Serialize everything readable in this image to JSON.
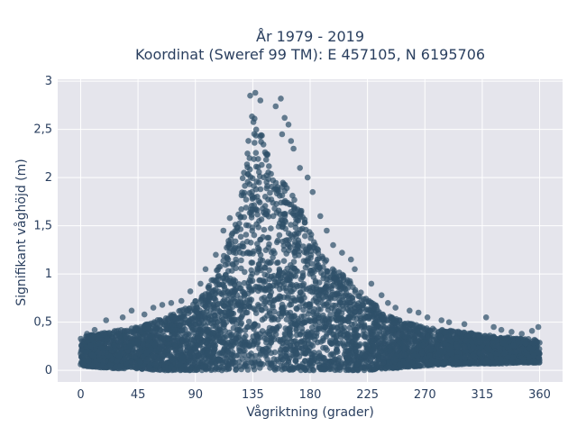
{
  "chart_data": {
    "type": "scatter",
    "title": "År 1979 - 2019",
    "subtitle": "Koordinat (Sweref 99 TM): E 457105, N 6195706",
    "xlabel": "Vågriktning (grader)",
    "ylabel": "Signifikant våghöjd (m)",
    "xlim": [
      -18,
      378
    ],
    "ylim": [
      -0.12,
      3.02
    ],
    "x_ticks": [
      0,
      45,
      90,
      135,
      180,
      225,
      270,
      315,
      360
    ],
    "x_tick_labels": [
      "0",
      "45",
      "90",
      "135",
      "180",
      "225",
      "270",
      "315",
      "360"
    ],
    "y_ticks": [
      0,
      0.5,
      1,
      1.5,
      2,
      2.5,
      3
    ],
    "y_tick_labels": [
      "0",
      "0,5",
      "1",
      "1,5",
      "2",
      "2,5",
      "3"
    ],
    "grid": true,
    "legend": "none",
    "marker_color": "#2f5069",
    "background_color": "#e5e5ec",
    "envelope": {
      "x": [
        0,
        15,
        30,
        45,
        60,
        75,
        90,
        100,
        110,
        120,
        125,
        130,
        135,
        140,
        145,
        150,
        155,
        160,
        170,
        180,
        190,
        200,
        210,
        225,
        240,
        255,
        270,
        285,
        300,
        315,
        330,
        345,
        360
      ],
      "y_max": [
        0.35,
        0.38,
        0.42,
        0.45,
        0.52,
        0.6,
        0.72,
        0.88,
        1.15,
        1.5,
        1.85,
        2.25,
        2.75,
        2.6,
        2.3,
        2.15,
        2.1,
        1.95,
        1.75,
        1.45,
        1.2,
        1.05,
        0.95,
        0.75,
        0.58,
        0.5,
        0.45,
        0.42,
        0.4,
        0.37,
        0.35,
        0.33,
        0.32
      ],
      "y_min": [
        0.05,
        0.03,
        0.02,
        0.02,
        0.0,
        0.0,
        0.0,
        0.0,
        0.0,
        0.0,
        0.0,
        0.0,
        0.0,
        0.0,
        0.0,
        0.0,
        0.0,
        0.0,
        0.0,
        0.0,
        0.0,
        0.0,
        0.0,
        0.0,
        0.02,
        0.03,
        0.05,
        0.06,
        0.06,
        0.07,
        0.07,
        0.08,
        0.08
      ]
    },
    "outliers": [
      {
        "x": 137,
        "y": 2.88
      },
      {
        "x": 133,
        "y": 2.85
      },
      {
        "x": 141,
        "y": 2.8
      },
      {
        "x": 157,
        "y": 2.82
      },
      {
        "x": 153,
        "y": 2.74
      },
      {
        "x": 160,
        "y": 2.62
      },
      {
        "x": 163,
        "y": 2.55
      },
      {
        "x": 158,
        "y": 2.45
      },
      {
        "x": 167,
        "y": 2.3
      },
      {
        "x": 165,
        "y": 2.38
      },
      {
        "x": 172,
        "y": 2.1
      },
      {
        "x": 178,
        "y": 2.0
      },
      {
        "x": 182,
        "y": 1.85
      },
      {
        "x": 188,
        "y": 1.6
      },
      {
        "x": 193,
        "y": 1.45
      },
      {
        "x": 198,
        "y": 1.3
      },
      {
        "x": 215,
        "y": 1.05
      },
      {
        "x": 228,
        "y": 0.9
      },
      {
        "x": 212,
        "y": 1.15
      },
      {
        "x": 205,
        "y": 1.22
      },
      {
        "x": 117,
        "y": 1.58
      },
      {
        "x": 112,
        "y": 1.45
      },
      {
        "x": 106,
        "y": 1.2
      },
      {
        "x": 98,
        "y": 1.05
      },
      {
        "x": 94,
        "y": 0.9
      },
      {
        "x": 86,
        "y": 0.82
      },
      {
        "x": 79,
        "y": 0.72
      },
      {
        "x": 71,
        "y": 0.7
      },
      {
        "x": 64,
        "y": 0.68
      },
      {
        "x": 57,
        "y": 0.65
      },
      {
        "x": 50,
        "y": 0.58
      },
      {
        "x": 40,
        "y": 0.62
      },
      {
        "x": 33,
        "y": 0.55
      },
      {
        "x": 20,
        "y": 0.52
      },
      {
        "x": 11,
        "y": 0.42
      },
      {
        "x": 5,
        "y": 0.38
      },
      {
        "x": 258,
        "y": 0.62
      },
      {
        "x": 265,
        "y": 0.6
      },
      {
        "x": 272,
        "y": 0.55
      },
      {
        "x": 283,
        "y": 0.52
      },
      {
        "x": 289,
        "y": 0.5
      },
      {
        "x": 301,
        "y": 0.48
      },
      {
        "x": 318,
        "y": 0.55
      },
      {
        "x": 324,
        "y": 0.45
      },
      {
        "x": 330,
        "y": 0.42
      },
      {
        "x": 338,
        "y": 0.4
      },
      {
        "x": 346,
        "y": 0.38
      },
      {
        "x": 354,
        "y": 0.41
      },
      {
        "x": 359,
        "y": 0.45
      },
      {
        "x": 241,
        "y": 0.7
      },
      {
        "x": 236,
        "y": 0.78
      },
      {
        "x": 247,
        "y": 0.65
      }
    ]
  }
}
